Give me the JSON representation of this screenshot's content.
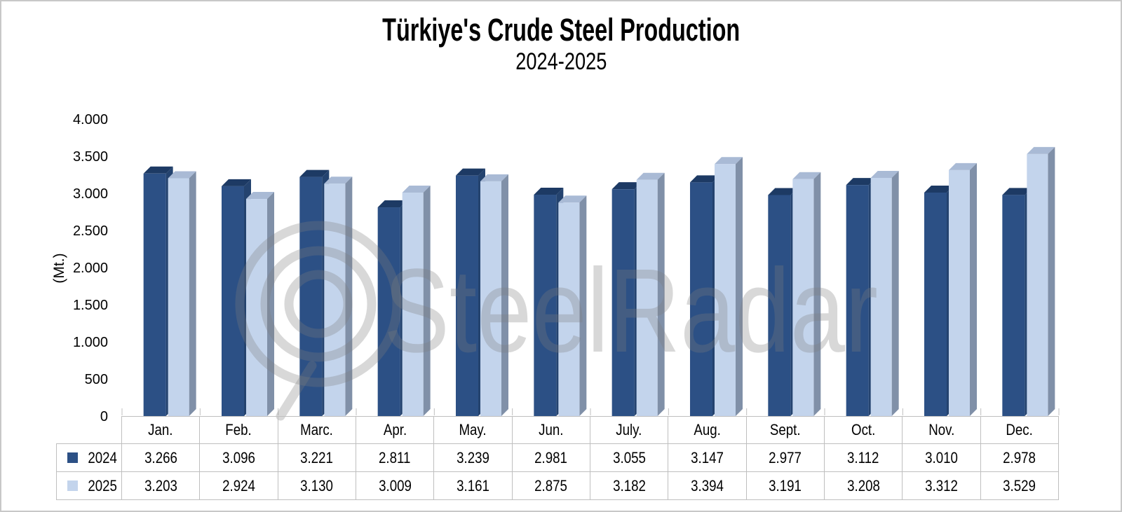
{
  "title": "Türkiye's Crude Steel Production",
  "subtitle": "2024-2025",
  "watermark": {
    "text": "SteelRadar"
  },
  "chart_data": {
    "type": "bar",
    "style": "3d-clustered-column",
    "title": "Türkiye's Crude Steel Production",
    "subtitle": "2024-2025",
    "xlabel": "",
    "ylabel": "(Mt.)",
    "ylim": [
      0,
      4000
    ],
    "ytick_step": 500,
    "yticklabels": [
      "0",
      "500",
      "1.000",
      "1.500",
      "2.000",
      "2.500",
      "3.000",
      "3.500",
      "4.000"
    ],
    "grid": false,
    "legend_position": "data-table-left-column",
    "value_format": "thousands-dot-separator",
    "categories": [
      "Jan.",
      "Feb.",
      "Marc.",
      "Apr.",
      "May.",
      "Jun.",
      "July.",
      "Aug.",
      "Sept.",
      "Oct.",
      "Nov.",
      "Dec."
    ],
    "series": [
      {
        "name": "2024",
        "values": [
          3266,
          3096,
          3221,
          2811,
          3239,
          2981,
          3055,
          3147,
          2977,
          3112,
          3010,
          2978
        ],
        "values_display": [
          "3.266",
          "3.096",
          "3.221",
          "2.811",
          "3.239",
          "2.981",
          "3.055",
          "3.147",
          "2.977",
          "3.112",
          "3.010",
          "2.978"
        ],
        "color_front": "#2C5085",
        "color_top": "#1D3A64",
        "color_side": "#24436F"
      },
      {
        "name": "2025",
        "values": [
          3203,
          2924,
          3130,
          3009,
          3161,
          2875,
          3182,
          3394,
          3191,
          3208,
          3312,
          3529
        ],
        "values_display": [
          "3.203",
          "2.924",
          "3.130",
          "3.009",
          "3.161",
          "2.875",
          "3.182",
          "3.394",
          "3.191",
          "3.208",
          "3.312",
          "3.529"
        ],
        "color_front": "#C3D4EC",
        "color_top": "#A9BAD5",
        "color_side": "#8090A8"
      }
    ]
  },
  "colors": {
    "axis_and_table_lines": "#BFBFBF",
    "text": "#000000",
    "background": "#FFFFFF",
    "watermark_gray": "rgba(127,127,127,0.30)",
    "image_border": "#C8C8C8"
  }
}
